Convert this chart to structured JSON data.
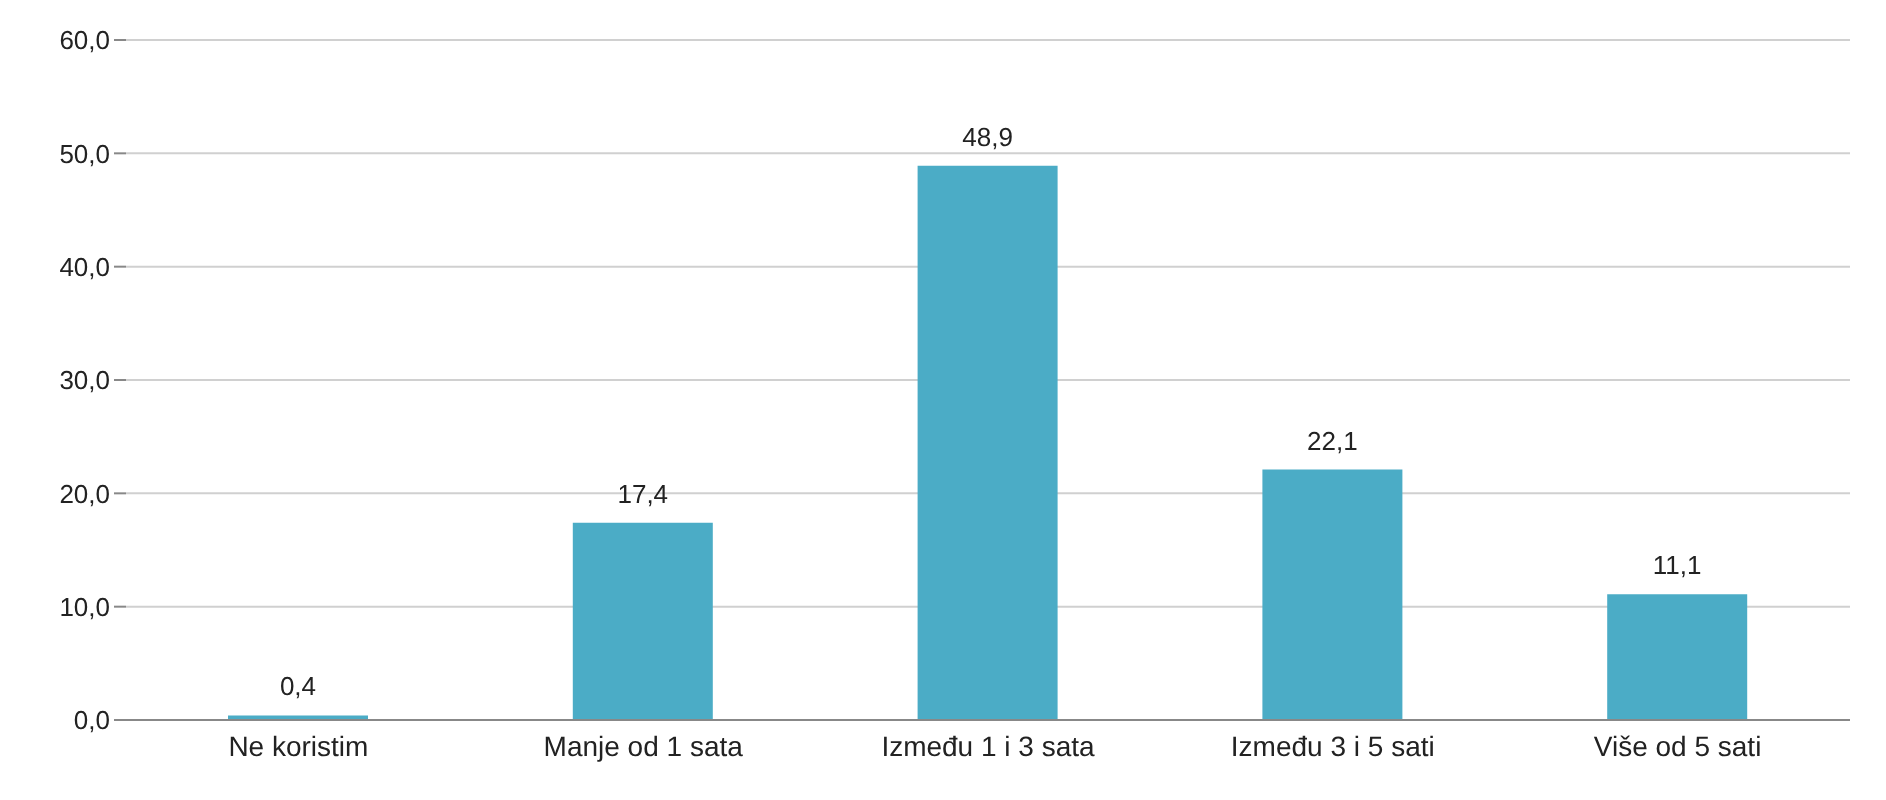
{
  "chart_data": {
    "type": "bar",
    "categories": [
      "Ne koristim",
      "Manje od 1 sata",
      "Između 1 i 3 sata",
      "Između 3 i 5 sati",
      "Više od 5 sati"
    ],
    "values": [
      0.4,
      17.4,
      48.9,
      22.1,
      11.1
    ],
    "value_labels": [
      "0,4",
      "17,4",
      "48,9",
      "22,1",
      "11,1"
    ],
    "color": "#4bacc6",
    "ylim": [
      0,
      60
    ],
    "yticks": [
      {
        "value": 0,
        "label": "0,0"
      },
      {
        "value": 10,
        "label": "10,0"
      },
      {
        "value": 20,
        "label": "20,0"
      },
      {
        "value": 30,
        "label": "30,0"
      },
      {
        "value": 40,
        "label": "40,0"
      },
      {
        "value": 50,
        "label": "50,0"
      },
      {
        "value": 60,
        "label": "60,0"
      }
    ],
    "grid": "y"
  }
}
